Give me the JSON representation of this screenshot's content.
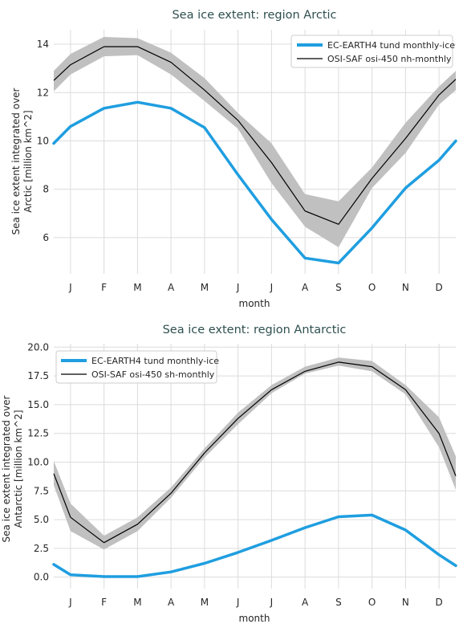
{
  "colors": {
    "model": "#1f9ee0",
    "obs": "#000000",
    "band": "#bdbdbd"
  },
  "chart_data": [
    {
      "type": "line",
      "title": "Sea ice extent: region Arctic",
      "xlabel": "month",
      "ylabel_line1": "Sea ice extent integrated over",
      "ylabel_line2": "Arctic [million km^2]",
      "categories": [
        "J",
        "F",
        "M",
        "A",
        "M",
        "J",
        "J",
        "A",
        "S",
        "O",
        "N",
        "D"
      ],
      "ylim": [
        4.5,
        14.6
      ],
      "yticks": [
        6,
        8,
        10,
        12,
        14
      ],
      "ytick_labels": [
        "6",
        "8",
        "10",
        "12",
        "14"
      ],
      "x": [
        0.5,
        1,
        2,
        3,
        4,
        5,
        6,
        7,
        8,
        9,
        10,
        11,
        12,
        12.5
      ],
      "series": [
        {
          "name": "EC-EARTH4 tund monthly-ice",
          "values": [
            9.9,
            10.6,
            11.35,
            11.6,
            11.35,
            10.55,
            8.6,
            6.75,
            5.15,
            4.95,
            6.4,
            8.05,
            9.2,
            10.0
          ]
        },
        {
          "name": "OSI-SAF osi-450 nh-monthly",
          "values": [
            12.5,
            13.15,
            13.9,
            13.9,
            13.25,
            12.1,
            10.85,
            9.1,
            7.1,
            6.55,
            8.45,
            10.1,
            11.9,
            12.55
          ],
          "upper": [
            12.9,
            13.6,
            14.3,
            14.25,
            13.65,
            12.6,
            11.15,
            9.9,
            7.8,
            7.5,
            8.9,
            10.75,
            12.25,
            12.9
          ],
          "lower": [
            12.05,
            12.75,
            13.5,
            13.55,
            12.75,
            11.65,
            10.5,
            8.25,
            6.45,
            5.6,
            8.05,
            9.5,
            11.5,
            12.1
          ]
        }
      ],
      "legend": "top-right",
      "grid": true
    },
    {
      "type": "line",
      "title": "Sea ice extent: region Antarctic",
      "xlabel": "month",
      "ylabel_line1": "Sea ice extent integrated over",
      "ylabel_line2": "Antarctic [million km^2]",
      "categories": [
        "J",
        "F",
        "M",
        "A",
        "M",
        "J",
        "J",
        "A",
        "S",
        "O",
        "N",
        "D"
      ],
      "ylim": [
        -1.0,
        20.3
      ],
      "yticks": [
        0,
        2.5,
        5,
        7.5,
        10,
        12.5,
        15,
        17.5,
        20
      ],
      "ytick_labels": [
        "0.0",
        "2.5",
        "5.0",
        "7.5",
        "10.0",
        "12.5",
        "15.0",
        "17.5",
        "20.0"
      ],
      "x": [
        0.5,
        1,
        2,
        3,
        4,
        5,
        6,
        7,
        8,
        9,
        10,
        11,
        12,
        12.5
      ],
      "series": [
        {
          "name": "EC-EARTH4 tund monthly-ice",
          "values": [
            1.1,
            0.2,
            0.05,
            0.05,
            0.45,
            1.2,
            2.15,
            3.2,
            4.3,
            5.25,
            5.4,
            4.1,
            1.95,
            1.0
          ]
        },
        {
          "name": "OSI-SAF osi-450 sh-monthly",
          "values": [
            9.0,
            5.2,
            3.0,
            4.6,
            7.3,
            10.8,
            13.8,
            16.3,
            17.9,
            18.7,
            18.3,
            16.3,
            12.5,
            8.8
          ],
          "upper": [
            10.1,
            6.4,
            3.6,
            5.2,
            7.8,
            11.2,
            14.3,
            16.7,
            18.3,
            19.1,
            18.8,
            16.7,
            13.9,
            10.5
          ],
          "lower": [
            8.0,
            4.0,
            2.4,
            4.0,
            6.9,
            10.4,
            13.3,
            16.0,
            17.7,
            18.4,
            17.9,
            15.9,
            11.3,
            7.6
          ]
        }
      ],
      "legend": "top-left",
      "grid": true
    }
  ]
}
